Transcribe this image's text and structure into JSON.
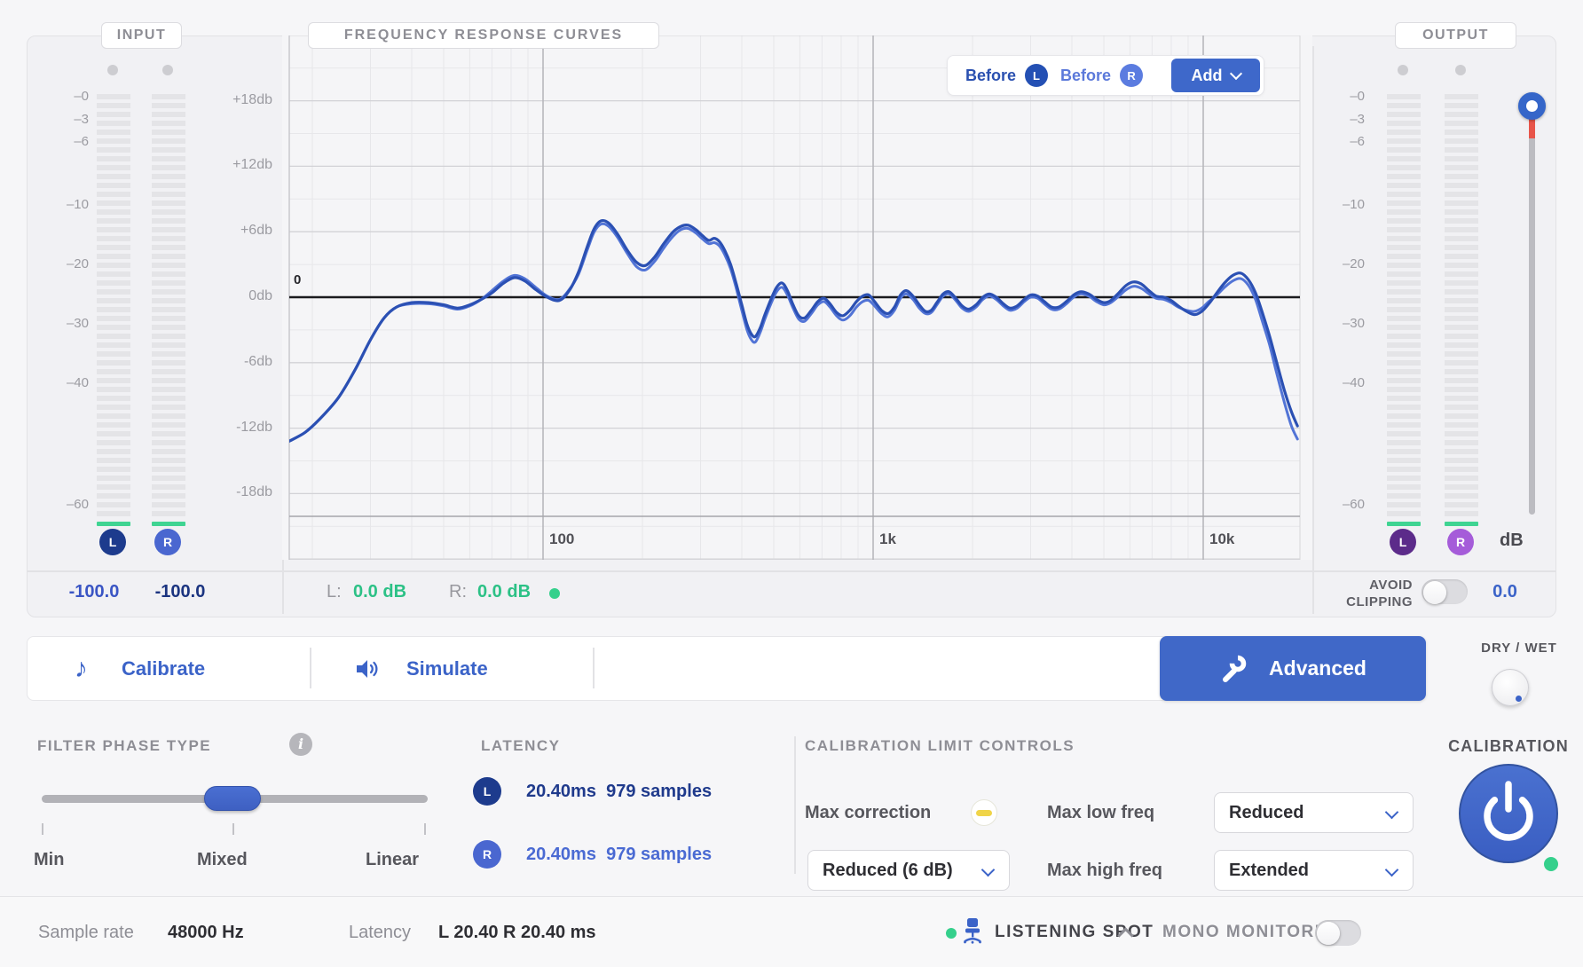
{
  "input": {
    "label": "INPUT",
    "ticks": [
      "–0",
      "–3",
      "–6",
      "–10",
      "–20",
      "–30",
      "–40",
      "–60"
    ],
    "l_badge": "L",
    "r_badge": "R",
    "l_value": "-100.0",
    "r_value": "-100.0"
  },
  "chart": {
    "title": "FREQUENCY RESPONSE CURVES",
    "y_tick_labels": [
      "+18db",
      "+12db",
      "+6db",
      "0db",
      "-6db",
      "-12db",
      "-18db"
    ],
    "zero_marker": "0",
    "legend": {
      "before_l": "Before",
      "l_badge": "L",
      "before_r": "Before",
      "r_badge": "R",
      "add_label": "Add"
    },
    "status": {
      "l_prefix": "L:",
      "l_value": "0.0 dB",
      "r_prefix": "R:",
      "r_value": "0.0 dB"
    }
  },
  "chart_data": {
    "type": "line",
    "title": "FREQUENCY RESPONSE CURVES",
    "x_scale": "log",
    "x_unit": "Hz",
    "y_unit": "dB",
    "x_range": [
      17,
      19600
    ],
    "y_range": [
      -24,
      24
    ],
    "y_grid_step_db": 3,
    "x_tick_values": [
      100,
      1000,
      10000
    ],
    "x_tick_labels": [
      "100",
      "1k",
      "10k"
    ],
    "zero_line_db": 0,
    "legend_position": "top-right",
    "series": [
      {
        "name": "Before L",
        "color": "#2b50b3",
        "points": [
          [
            17,
            -13.2
          ],
          [
            19,
            -12.4
          ],
          [
            21,
            -11.2
          ],
          [
            24,
            -9.2
          ],
          [
            27,
            -6.6
          ],
          [
            30,
            -3.9
          ],
          [
            33,
            -1.9
          ],
          [
            36,
            -0.9
          ],
          [
            40,
            -0.5
          ],
          [
            45,
            -0.5
          ],
          [
            50,
            -0.7
          ],
          [
            55,
            -1.0
          ],
          [
            60,
            -0.7
          ],
          [
            65,
            -0.2
          ],
          [
            70,
            0.4
          ],
          [
            76,
            1.3
          ],
          [
            82,
            1.8
          ],
          [
            88,
            1.5
          ],
          [
            95,
            0.7
          ],
          [
            103,
            0.0
          ],
          [
            112,
            -0.3
          ],
          [
            120,
            0.6
          ],
          [
            128,
            2.3
          ],
          [
            136,
            4.6
          ],
          [
            143,
            6.3
          ],
          [
            150,
            7.0
          ],
          [
            158,
            6.8
          ],
          [
            168,
            5.8
          ],
          [
            180,
            4.3
          ],
          [
            192,
            3.2
          ],
          [
            204,
            2.9
          ],
          [
            218,
            3.7
          ],
          [
            232,
            4.9
          ],
          [
            248,
            6.0
          ],
          [
            262,
            6.5
          ],
          [
            275,
            6.6
          ],
          [
            290,
            6.2
          ],
          [
            305,
            5.6
          ],
          [
            318,
            5.2
          ],
          [
            330,
            5.4
          ],
          [
            342,
            5.1
          ],
          [
            355,
            4.3
          ],
          [
            370,
            3.0
          ],
          [
            385,
            1.2
          ],
          [
            400,
            -0.7
          ],
          [
            415,
            -2.5
          ],
          [
            428,
            -3.4
          ],
          [
            440,
            -3.6
          ],
          [
            455,
            -2.8
          ],
          [
            470,
            -1.6
          ],
          [
            490,
            -0.2
          ],
          [
            510,
            0.9
          ],
          [
            530,
            1.3
          ],
          [
            550,
            0.6
          ],
          [
            572,
            -0.7
          ],
          [
            595,
            -1.7
          ],
          [
            620,
            -1.9
          ],
          [
            650,
            -1.2
          ],
          [
            680,
            -0.4
          ],
          [
            710,
            -0.1
          ],
          [
            740,
            -0.6
          ],
          [
            775,
            -1.4
          ],
          [
            810,
            -1.7
          ],
          [
            850,
            -1.2
          ],
          [
            890,
            -0.4
          ],
          [
            930,
            0.1
          ],
          [
            970,
            0.2
          ],
          [
            1010,
            -0.4
          ],
          [
            1060,
            -1.2
          ],
          [
            1110,
            -1.5
          ],
          [
            1160,
            -0.9
          ],
          [
            1210,
            0.2
          ],
          [
            1260,
            0.6
          ],
          [
            1320,
            0.1
          ],
          [
            1380,
            -0.7
          ],
          [
            1440,
            -1.3
          ],
          [
            1500,
            -1.2
          ],
          [
            1560,
            -0.5
          ],
          [
            1630,
            0.3
          ],
          [
            1700,
            0.5
          ],
          [
            1780,
            -0.1
          ],
          [
            1860,
            -0.8
          ],
          [
            1950,
            -1.1
          ],
          [
            2050,
            -0.7
          ],
          [
            2150,
            0.0
          ],
          [
            2250,
            0.3
          ],
          [
            2360,
            0.0
          ],
          [
            2480,
            -0.6
          ],
          [
            2600,
            -1.0
          ],
          [
            2730,
            -0.8
          ],
          [
            2870,
            -0.2
          ],
          [
            3000,
            0.2
          ],
          [
            3150,
            0.1
          ],
          [
            3300,
            -0.4
          ],
          [
            3470,
            -0.9
          ],
          [
            3650,
            -0.9
          ],
          [
            3850,
            -0.4
          ],
          [
            4050,
            0.2
          ],
          [
            4250,
            0.5
          ],
          [
            4500,
            0.3
          ],
          [
            4750,
            -0.2
          ],
          [
            5000,
            -0.5
          ],
          [
            5250,
            -0.3
          ],
          [
            5550,
            0.4
          ],
          [
            5850,
            1.1
          ],
          [
            6150,
            1.4
          ],
          [
            6500,
            1.2
          ],
          [
            6850,
            0.6
          ],
          [
            7200,
            0.1
          ],
          [
            7600,
            0.0
          ],
          [
            8000,
            -0.3
          ],
          [
            8400,
            -0.8
          ],
          [
            8900,
            -1.3
          ],
          [
            9400,
            -1.6
          ],
          [
            9900,
            -1.3
          ],
          [
            10400,
            -0.6
          ],
          [
            11000,
            0.4
          ],
          [
            11600,
            1.3
          ],
          [
            12300,
            2.0
          ],
          [
            13000,
            2.2
          ],
          [
            13700,
            1.6
          ],
          [
            14400,
            0.4
          ],
          [
            15100,
            -1.4
          ],
          [
            15900,
            -3.6
          ],
          [
            16700,
            -6.0
          ],
          [
            17600,
            -8.5
          ],
          [
            18500,
            -10.5
          ],
          [
            19300,
            -11.8
          ]
        ]
      },
      {
        "name": "Before R",
        "color": "#5274d6",
        "points": [
          [
            17,
            -13.2
          ],
          [
            19,
            -12.4
          ],
          [
            21,
            -11.2
          ],
          [
            24,
            -9.2
          ],
          [
            27,
            -6.6
          ],
          [
            30,
            -3.9
          ],
          [
            33,
            -1.9
          ],
          [
            36,
            -0.9
          ],
          [
            40,
            -0.6
          ],
          [
            45,
            -0.6
          ],
          [
            50,
            -0.8
          ],
          [
            55,
            -1.1
          ],
          [
            60,
            -0.8
          ],
          [
            65,
            -0.2
          ],
          [
            70,
            0.6
          ],
          [
            76,
            1.5
          ],
          [
            82,
            2.0
          ],
          [
            88,
            1.7
          ],
          [
            95,
            0.9
          ],
          [
            103,
            0.1
          ],
          [
            112,
            -0.2
          ],
          [
            120,
            0.7
          ],
          [
            128,
            2.1
          ],
          [
            136,
            4.3
          ],
          [
            143,
            6.0
          ],
          [
            150,
            6.7
          ],
          [
            158,
            6.5
          ],
          [
            168,
            5.5
          ],
          [
            180,
            4.0
          ],
          [
            192,
            2.8
          ],
          [
            204,
            2.5
          ],
          [
            218,
            3.3
          ],
          [
            232,
            4.5
          ],
          [
            248,
            5.6
          ],
          [
            262,
            6.2
          ],
          [
            275,
            6.3
          ],
          [
            290,
            5.9
          ],
          [
            305,
            5.3
          ],
          [
            318,
            4.9
          ],
          [
            330,
            5.0
          ],
          [
            342,
            4.7
          ],
          [
            355,
            3.9
          ],
          [
            370,
            2.6
          ],
          [
            385,
            0.8
          ],
          [
            400,
            -1.2
          ],
          [
            415,
            -3.0
          ],
          [
            428,
            -3.9
          ],
          [
            440,
            -4.1
          ],
          [
            455,
            -3.2
          ],
          [
            470,
            -2.0
          ],
          [
            490,
            -0.6
          ],
          [
            510,
            0.5
          ],
          [
            530,
            0.9
          ],
          [
            550,
            0.2
          ],
          [
            572,
            -1.0
          ],
          [
            595,
            -2.0
          ],
          [
            620,
            -2.2
          ],
          [
            650,
            -1.5
          ],
          [
            680,
            -0.7
          ],
          [
            710,
            -0.4
          ],
          [
            740,
            -0.9
          ],
          [
            775,
            -1.7
          ],
          [
            810,
            -2.1
          ],
          [
            850,
            -1.7
          ],
          [
            890,
            -0.9
          ],
          [
            930,
            -0.4
          ],
          [
            970,
            -0.3
          ],
          [
            1010,
            -0.8
          ],
          [
            1060,
            -1.5
          ],
          [
            1110,
            -1.8
          ],
          [
            1160,
            -1.2
          ],
          [
            1210,
            -0.1
          ],
          [
            1260,
            0.3
          ],
          [
            1320,
            -0.2
          ],
          [
            1380,
            -1.0
          ],
          [
            1440,
            -1.5
          ],
          [
            1500,
            -1.4
          ],
          [
            1560,
            -0.7
          ],
          [
            1630,
            0.1
          ],
          [
            1700,
            0.3
          ],
          [
            1780,
            -0.3
          ],
          [
            1860,
            -1.0
          ],
          [
            1950,
            -1.3
          ],
          [
            2050,
            -0.9
          ],
          [
            2150,
            -0.2
          ],
          [
            2250,
            0.1
          ],
          [
            2360,
            -0.2
          ],
          [
            2480,
            -0.8
          ],
          [
            2600,
            -1.2
          ],
          [
            2730,
            -1.0
          ],
          [
            2870,
            -0.4
          ],
          [
            3000,
            0.0
          ],
          [
            3150,
            -0.1
          ],
          [
            3300,
            -0.6
          ],
          [
            3470,
            -1.1
          ],
          [
            3650,
            -1.1
          ],
          [
            3850,
            -0.6
          ],
          [
            4050,
            0.0
          ],
          [
            4250,
            0.3
          ],
          [
            4500,
            0.1
          ],
          [
            4750,
            -0.4
          ],
          [
            5000,
            -0.7
          ],
          [
            5250,
            -0.5
          ],
          [
            5550,
            0.1
          ],
          [
            5850,
            0.7
          ],
          [
            6150,
            1.0
          ],
          [
            6500,
            0.8
          ],
          [
            6850,
            0.3
          ],
          [
            7200,
            -0.1
          ],
          [
            7600,
            -0.2
          ],
          [
            8000,
            -0.5
          ],
          [
            8400,
            -0.9
          ],
          [
            8900,
            -1.2
          ],
          [
            9400,
            -1.3
          ],
          [
            9900,
            -1.0
          ],
          [
            10400,
            -0.4
          ],
          [
            11000,
            0.2
          ],
          [
            11600,
            0.9
          ],
          [
            12300,
            1.5
          ],
          [
            13000,
            1.7
          ],
          [
            13700,
            1.1
          ],
          [
            14400,
            -0.2
          ],
          [
            15100,
            -2.2
          ],
          [
            15900,
            -4.4
          ],
          [
            16700,
            -7.0
          ],
          [
            17600,
            -9.6
          ],
          [
            18500,
            -11.8
          ],
          [
            19300,
            -13.0
          ]
        ]
      }
    ]
  },
  "output": {
    "label": "OUTPUT",
    "ticks": [
      "–0",
      "–3",
      "–6",
      "–10",
      "–20",
      "–30",
      "–40",
      "–60"
    ],
    "l_badge": "L",
    "r_badge": "R",
    "db_label": "dB",
    "avoid_line1": "AVOID",
    "avoid_line2": "CLIPPING",
    "trim_value": "0.0"
  },
  "toolbar": {
    "calibrate": "Calibrate",
    "simulate": "Simulate",
    "advanced": "Advanced",
    "dry_wet": "DRY / WET"
  },
  "controls": {
    "filter_phase": {
      "title": "FILTER PHASE TYPE",
      "min": "Min",
      "mixed": "Mixed",
      "linear": "Linear"
    },
    "latency": {
      "title": "LATENCY",
      "l_badge": "L",
      "r_badge": "R",
      "l_ms": "20.40ms",
      "l_samples": "979 samples",
      "r_ms": "20.40ms",
      "r_samples": "979 samples"
    },
    "limits": {
      "title": "CALIBRATION LIMIT CONTROLS",
      "max_correction": "Max correction",
      "max_correction_value": "Reduced (6 dB)",
      "max_low": "Max low freq",
      "max_low_value": "Reduced",
      "max_high": "Max high freq",
      "max_high_value": "Extended"
    },
    "calibration_title": "CALIBRATION"
  },
  "statusbar": {
    "sample_rate_label": "Sample rate",
    "sample_rate_value": "48000 Hz",
    "latency_label": "Latency",
    "latency_value": "L 20.40 R 20.40 ms",
    "listening_spot": "LISTENING SPOT",
    "mono_monitoring": "MONO MONITORING"
  },
  "colors": {
    "accent": "#3b63c8",
    "curve_l": "#2b50b3",
    "curve_r": "#5274d6",
    "green": "#2cc186",
    "green_dot": "#35d08c",
    "input_l_badge": "#1d3b8d",
    "input_r_badge": "#4a67d0",
    "output_l_badge": "#5c2b8a",
    "output_r_badge": "#a55cd9",
    "value_blue": "#3a55c4",
    "value_navy": "#1b3480"
  }
}
